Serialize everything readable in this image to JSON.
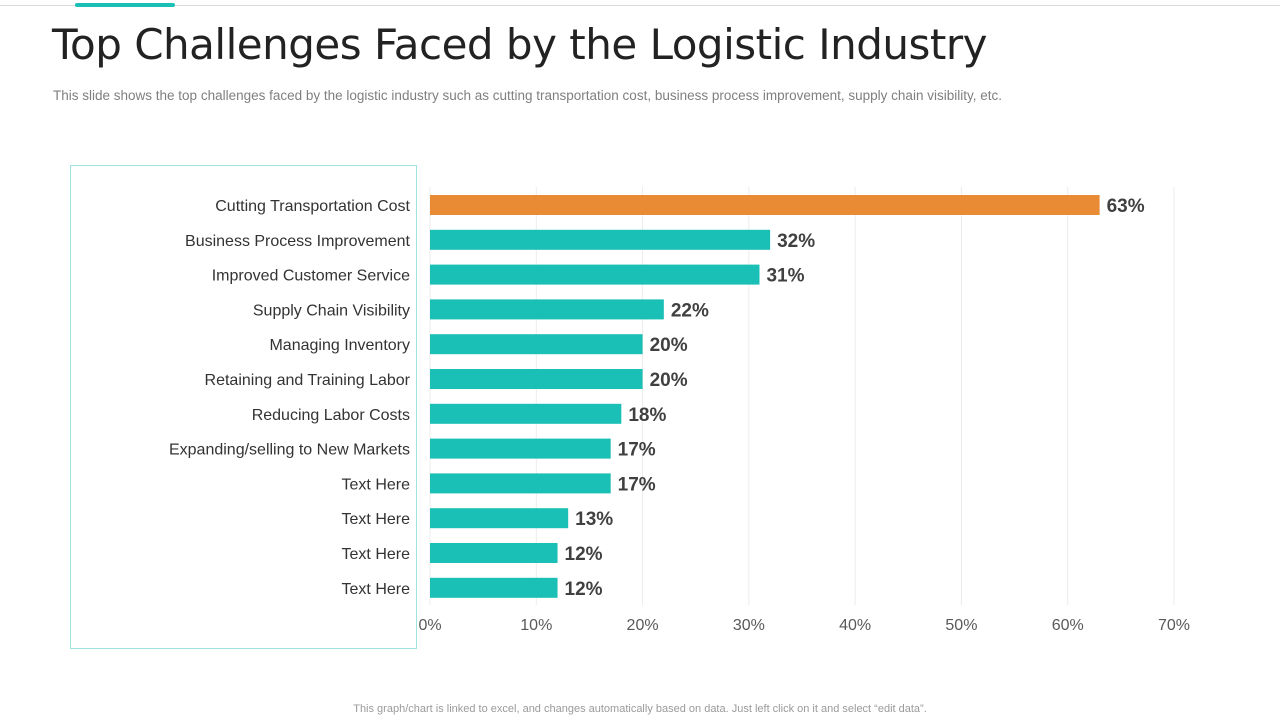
{
  "slide": {
    "title": "Top Challenges Faced by the Logistic Industry",
    "subtitle": "This slide shows the top challenges faced by the logistic industry such as cutting transportation cost, business process improvement, supply chain visibility, etc.",
    "footer": "This graph/chart is linked to excel,  and changes automatically based on data. Just left click on it and select “edit data”."
  },
  "colors": {
    "highlight": "#e98a35",
    "bar": "#1abfb5",
    "accent": "#1abfb5"
  },
  "chart_data": {
    "type": "bar",
    "orientation": "horizontal",
    "title": "",
    "xlabel": "",
    "ylabel": "",
    "xlim": [
      0,
      70
    ],
    "x_ticks": [
      "0%",
      "10%",
      "20%",
      "30%",
      "40%",
      "50%",
      "60%",
      "70%"
    ],
    "grid": true,
    "categories": [
      "Cutting Transportation Cost",
      "Business Process Improvement",
      "Improved Customer Service",
      "Supply Chain Visibility",
      "Managing Inventory",
      "Retaining and Training Labor",
      "Reducing Labor Costs",
      "Expanding/selling to New Markets",
      "Text Here",
      "Text Here",
      "Text Here",
      "Text Here"
    ],
    "values": [
      63,
      32,
      31,
      22,
      20,
      20,
      18,
      17,
      17,
      13,
      12,
      12
    ],
    "data_labels": [
      "63%",
      "32%",
      "31%",
      "22%",
      "20%",
      "20%",
      "18%",
      "17%",
      "17%",
      "13%",
      "12%",
      "12%"
    ],
    "highlight_index": 0
  }
}
